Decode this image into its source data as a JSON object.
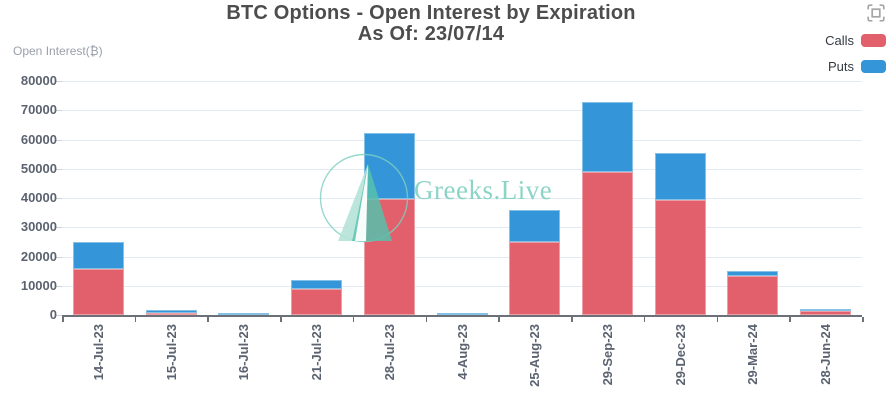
{
  "header": {
    "title_line1": "BTC Options - Open Interest by Expiration",
    "title_line2": "As Of: 23/07/14"
  },
  "legend": {
    "items": [
      {
        "label": "Calls",
        "color": "#e2606b"
      },
      {
        "label": "Puts",
        "color": "#3496d8"
      }
    ]
  },
  "watermark": {
    "text": "Greeks.Live",
    "color": "#7fd0c0"
  },
  "toolbox": {
    "icon": "viewfinder-icon",
    "color": "#a6a6a6"
  },
  "chart_data": {
    "type": "bar",
    "stacked": true,
    "title": "BTC Options - Open Interest by Expiration",
    "subtitle": "As Of: 23/07/14",
    "xlabel": "",
    "ylabel": "Open Interest(₿)",
    "ylim": [
      0,
      80000
    ],
    "y_ticks": [
      0,
      10000,
      20000,
      30000,
      40000,
      50000,
      60000,
      70000,
      80000
    ],
    "grid": true,
    "legend_position": "top-right",
    "categories": [
      "14-Jul-23",
      "15-Jul-23",
      "16-Jul-23",
      "21-Jul-23",
      "28-Jul-23",
      "4-Aug-23",
      "25-Aug-23",
      "29-Sep-23",
      "29-Dec-23",
      "29-Mar-24",
      "28-Jun-24"
    ],
    "series": [
      {
        "name": "Calls",
        "color": "#e2606b",
        "values": [
          15600,
          600,
          150,
          8800,
          39800,
          550,
          24800,
          48900,
          39400,
          13200,
          1300
        ]
      },
      {
        "name": "Puts",
        "color": "#3496d8",
        "values": [
          9200,
          1100,
          400,
          3200,
          22500,
          300,
          11000,
          24000,
          15900,
          1700,
          900
        ]
      }
    ]
  }
}
